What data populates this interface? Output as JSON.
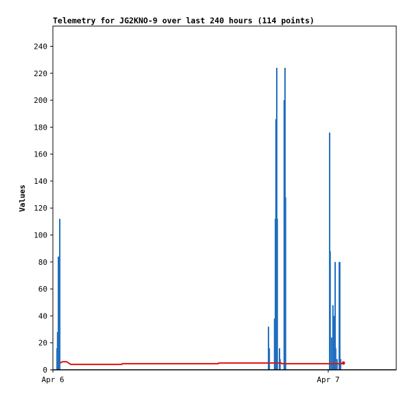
{
  "chart_data": {
    "type": "impulse-line",
    "title": "Telemetry for JG2KNO-9 over last 240 hours (114 points)",
    "y_label": "Values",
    "xlim": [
      0,
      1.247
    ],
    "xticks": [
      {
        "value": 0,
        "label": "Apr 6"
      },
      {
        "value": 1,
        "label": "Apr 7"
      }
    ],
    "ylim": [
      0,
      255
    ],
    "yticks": [
      0,
      20,
      40,
      60,
      80,
      100,
      120,
      140,
      160,
      180,
      200,
      220,
      240
    ],
    "series": [
      {
        "style": "impulse",
        "color": "#1f6fbf",
        "x": [
          0.015,
          0.017,
          0.02,
          0.025,
          0.783,
          0.786,
          0.805,
          0.808,
          0.81,
          0.813,
          0.815,
          0.823,
          0.825,
          0.84,
          0.843,
          0.845,
          1.005,
          1.007,
          1.012,
          1.017,
          1.02,
          1.025,
          1.027,
          1.032,
          1.04,
          1.042,
          1.045
        ],
        "values": [
          16,
          28,
          84,
          112,
          32,
          16,
          38,
          112,
          186,
          224,
          112,
          16,
          8,
          200,
          224,
          128,
          176,
          88,
          24,
          48,
          40,
          80,
          16,
          8,
          80,
          80,
          8
        ]
      },
      {
        "style": "line",
        "color": "#dd1111",
        "x": [
          0.025,
          0.035,
          0.05,
          0.057,
          0.065,
          0.25,
          0.252,
          0.6,
          0.602,
          0.83,
          0.832,
          1.047,
          1.055
        ],
        "values": [
          5,
          6,
          6,
          5,
          4,
          4,
          4.5,
          4.5,
          5,
          5,
          4.5,
          4.5,
          5
        ]
      }
    ]
  }
}
